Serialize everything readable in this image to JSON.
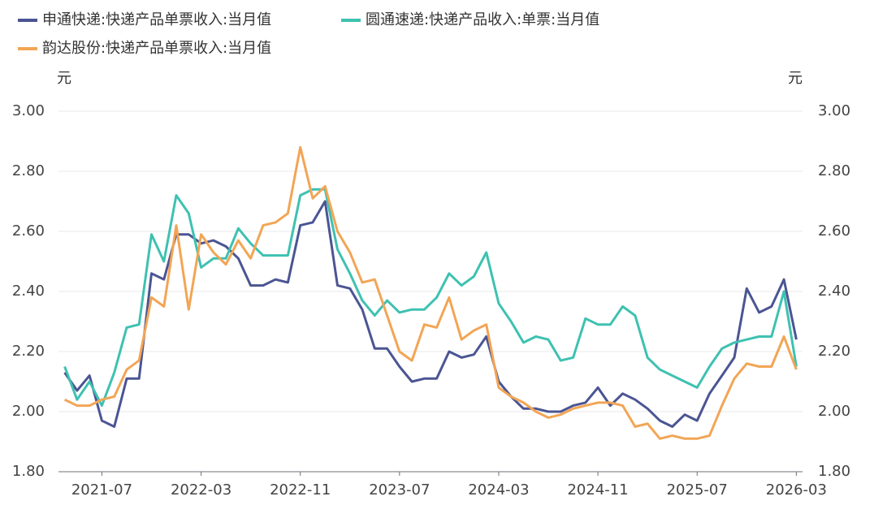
{
  "chart_data": {
    "type": "line",
    "categories": [
      null,
      null,
      null,
      "2021-07",
      null,
      null,
      null,
      null,
      null,
      null,
      null,
      "2022-03",
      null,
      null,
      null,
      null,
      null,
      null,
      null,
      "2022-11",
      null,
      null,
      null,
      null,
      null,
      null,
      null,
      "2023-07",
      null,
      null,
      null,
      null,
      null,
      null,
      null,
      "2024-03",
      null,
      null,
      null,
      null,
      null,
      null,
      null,
      "2024-11",
      null,
      null,
      null,
      null,
      null,
      null,
      null,
      "2025-07",
      null,
      null,
      null,
      null,
      null,
      null,
      null,
      "2026-03"
    ],
    "series": [
      {
        "name": "申通快递:快递产品单票收入:当月值",
        "color": "#4b5593",
        "values": [
          2.13,
          2.07,
          2.12,
          1.97,
          1.95,
          2.11,
          2.11,
          2.46,
          2.44,
          2.59,
          2.59,
          2.56,
          2.57,
          2.55,
          2.51,
          2.42,
          2.42,
          2.44,
          2.43,
          2.62,
          2.63,
          2.7,
          2.42,
          2.41,
          2.34,
          2.21,
          2.21,
          2.15,
          2.1,
          2.11,
          2.11,
          2.2,
          2.18,
          2.19,
          2.25,
          2.1,
          2.05,
          2.01,
          2.01,
          2.0,
          2.0,
          2.02,
          2.03,
          2.08,
          2.02,
          2.06,
          2.04,
          2.01,
          1.97,
          1.95,
          1.99,
          1.97,
          2.06,
          2.12,
          2.18,
          2.41,
          2.33,
          2.35,
          2.44,
          2.24
        ]
      },
      {
        "name": "圆通速递:快递产品收入:单票:当月值",
        "color": "#3ec1b1",
        "values": [
          2.15,
          2.04,
          2.1,
          2.02,
          2.13,
          2.28,
          2.29,
          2.59,
          2.5,
          2.72,
          2.66,
          2.48,
          2.51,
          2.51,
          2.61,
          2.56,
          2.52,
          2.52,
          2.52,
          2.72,
          2.74,
          2.74,
          2.54,
          2.46,
          2.37,
          2.32,
          2.37,
          2.33,
          2.34,
          2.34,
          2.38,
          2.46,
          2.42,
          2.45,
          2.53,
          2.36,
          2.3,
          2.23,
          2.25,
          2.24,
          2.17,
          2.18,
          2.31,
          2.29,
          2.29,
          2.35,
          2.32,
          2.18,
          2.14,
          2.12,
          2.1,
          2.08,
          2.15,
          2.21,
          2.23,
          2.24,
          2.25,
          2.25,
          2.4,
          2.15
        ]
      },
      {
        "name": "韵达股份:快递产品单票收入:当月值",
        "color": "#f2a555",
        "values": [
          2.04,
          2.02,
          2.02,
          2.04,
          2.05,
          2.14,
          2.17,
          2.38,
          2.35,
          2.62,
          2.34,
          2.59,
          2.53,
          2.49,
          2.57,
          2.51,
          2.62,
          2.63,
          2.66,
          2.88,
          2.71,
          2.75,
          2.6,
          2.53,
          2.43,
          2.44,
          2.32,
          2.2,
          2.17,
          2.29,
          2.28,
          2.38,
          2.24,
          2.27,
          2.29,
          2.08,
          2.05,
          2.03,
          2.0,
          1.98,
          1.99,
          2.01,
          2.02,
          2.03,
          2.03,
          2.02,
          1.95,
          1.96,
          1.91,
          1.92,
          1.91,
          1.91,
          1.92,
          2.02,
          2.11,
          2.16,
          2.15,
          2.15,
          2.25,
          2.14
        ]
      }
    ],
    "y_label": "元",
    "y2_label": "元",
    "ylim": [
      1.8,
      3.0
    ],
    "yticks": [
      {
        "value": 1.8,
        "label": "1.80"
      },
      {
        "value": 2.0,
        "label": "2.00"
      },
      {
        "value": 2.2,
        "label": "2.20"
      },
      {
        "value": 2.4,
        "label": "2.40"
      },
      {
        "value": 2.6,
        "label": "2.60"
      },
      {
        "value": 2.8,
        "label": "2.80"
      },
      {
        "value": 3.0,
        "label": "3.00"
      }
    ],
    "y2lim": [
      1.8,
      3.0
    ],
    "y2ticks": [
      {
        "value": 1.8,
        "label": "1.80"
      },
      {
        "value": 2.0,
        "label": "2.00"
      },
      {
        "value": 2.2,
        "label": "2.20"
      },
      {
        "value": 2.4,
        "label": "2.40"
      },
      {
        "value": 2.6,
        "label": "2.60"
      },
      {
        "value": 2.8,
        "label": "2.80"
      },
      {
        "value": 3.0,
        "label": "3.00"
      }
    ],
    "grid": true,
    "legend": "top"
  }
}
